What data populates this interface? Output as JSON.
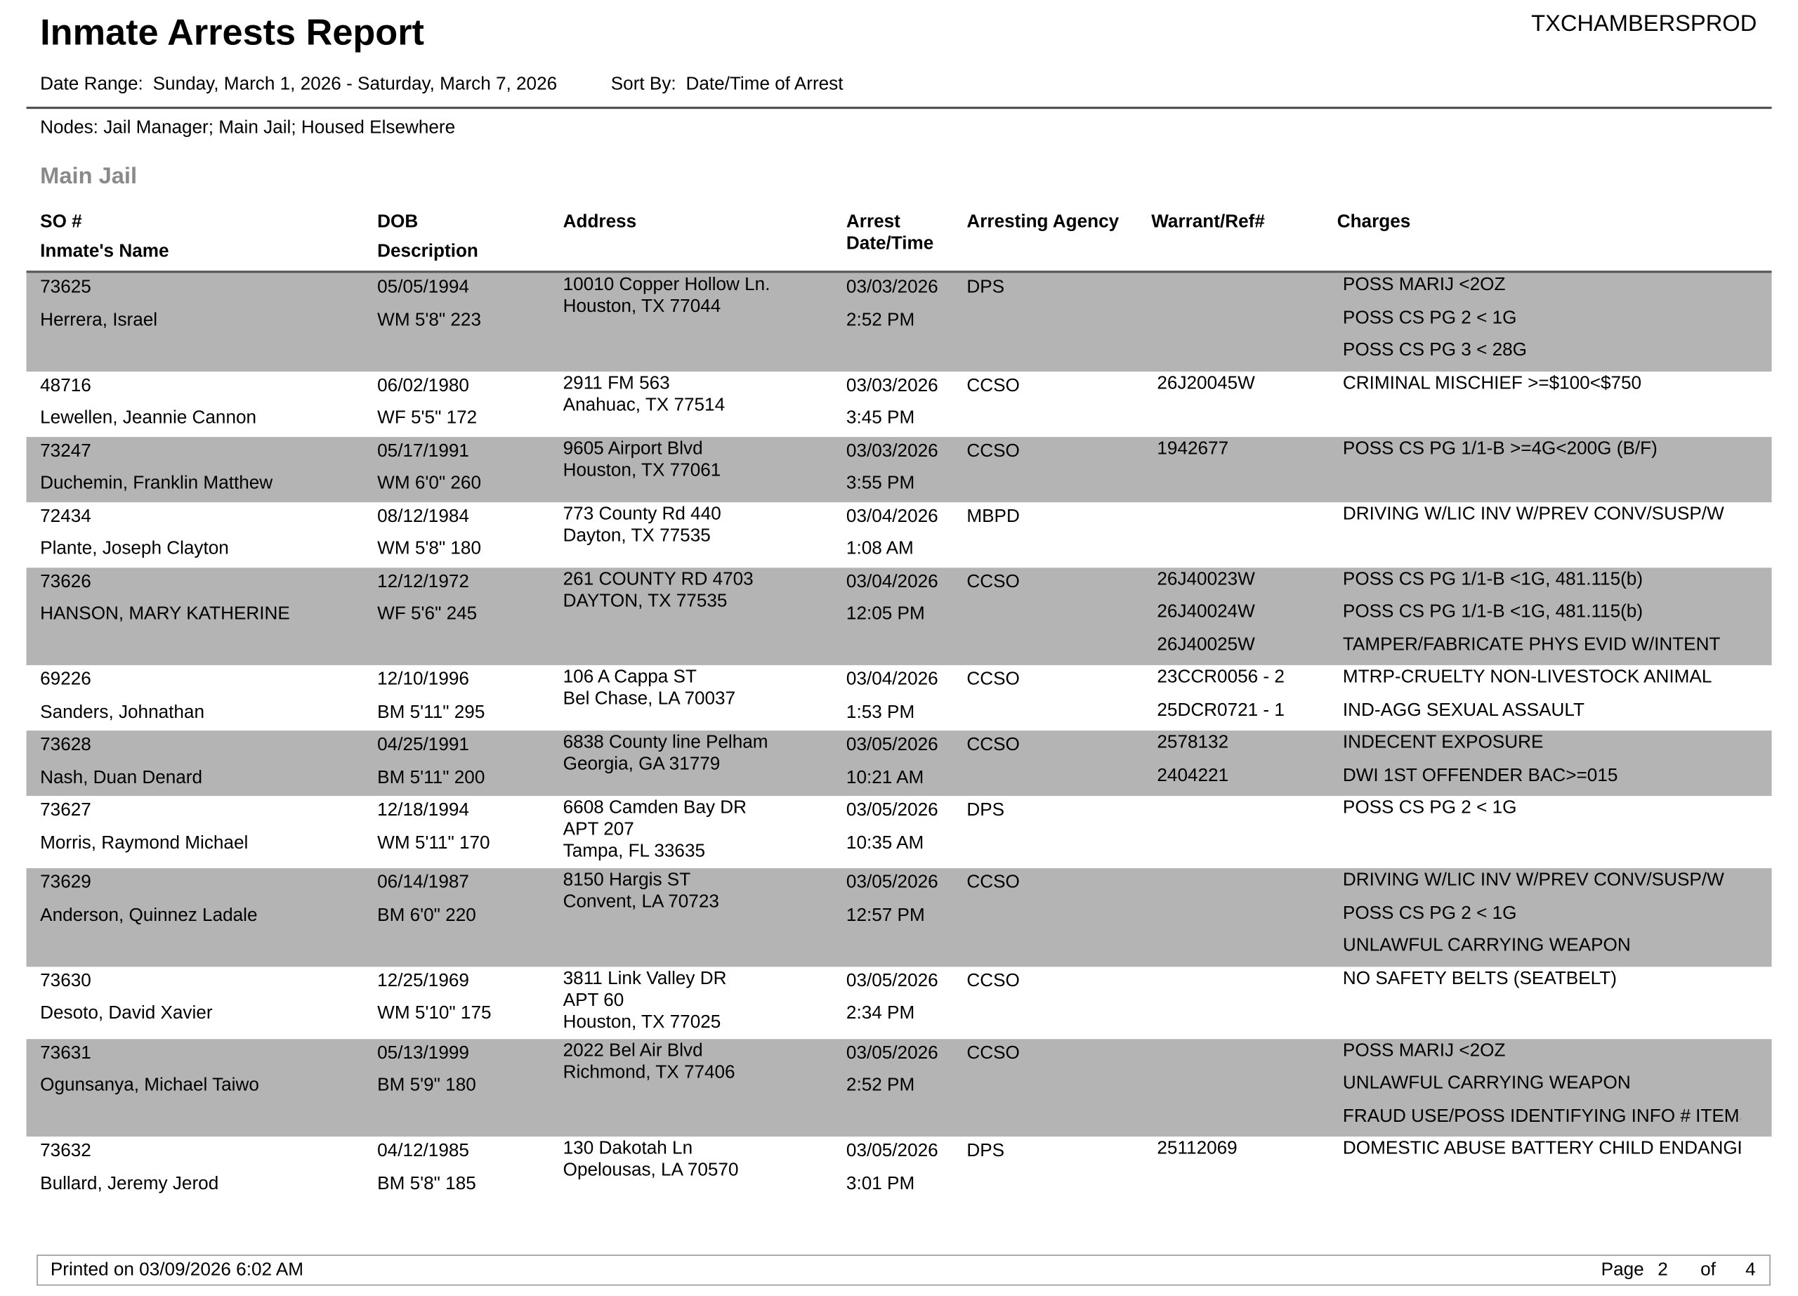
{
  "report": {
    "title": "Inmate Arrests Report",
    "system": "TXCHAMBERSPROD",
    "date_range_label": "Date Range:",
    "date_range": "Sunday, March 1, 2026 - Saturday, March 7, 2026",
    "sort_by_label": "Sort By:",
    "sort_by": "Date/Time of Arrest",
    "nodes_label": "Nodes:",
    "nodes": "Jail Manager; Main Jail; Housed Elsewhere",
    "section": "Main Jail",
    "shade_color": "#b4b4b4"
  },
  "columns": {
    "so": "SO #",
    "name": "Inmate's Name",
    "dob": "DOB",
    "description": "Description",
    "address": "Address",
    "arrest1": "Arrest",
    "arrest2": "Date/Time",
    "agency": "Arresting Agency",
    "warrant": "Warrant/Ref#",
    "charges": "Charges"
  },
  "rows": [
    {
      "so": "73625",
      "name": "Herrera, Israel",
      "dob": "05/05/1994",
      "desc": "WM  5'8\" 223",
      "address": [
        "10010 Copper Hollow Ln.",
        "Houston, TX 77044"
      ],
      "date": "03/03/2026",
      "time": "2:52 PM",
      "agency": "DPS",
      "warrants": [],
      "charges": [
        "POSS MARIJ <2OZ",
        "POSS CS PG 2 < 1G",
        "POSS CS PG 3 < 28G"
      ]
    },
    {
      "so": "48716",
      "name": "Lewellen, Jeannie Cannon",
      "dob": "06/02/1980",
      "desc": "WF  5'5\" 172",
      "address": [
        "2911 FM 563",
        "Anahuac, TX 77514"
      ],
      "date": "03/03/2026",
      "time": "3:45 PM",
      "agency": "CCSO",
      "warrants": [
        "26J20045W"
      ],
      "charges": [
        "CRIMINAL MISCHIEF >=$100<$750"
      ]
    },
    {
      "so": "73247",
      "name": "Duchemin, Franklin Matthew",
      "dob": "05/17/1991",
      "desc": "WM  6'0\" 260",
      "address": [
        "9605 Airport Blvd",
        "Houston, TX 77061"
      ],
      "date": "03/03/2026",
      "time": "3:55 PM",
      "agency": "CCSO",
      "warrants": [
        "1942677"
      ],
      "charges": [
        "POSS CS PG 1/1-B >=4G<200G (B/F)"
      ]
    },
    {
      "so": "72434",
      "name": "Plante, Joseph Clayton",
      "dob": "08/12/1984",
      "desc": "WM  5'8\" 180",
      "address": [
        "773 County Rd 440",
        "Dayton, TX 77535"
      ],
      "date": "03/04/2026",
      "time": "1:08 AM",
      "agency": "MBPD",
      "warrants": [],
      "charges": [
        "DRIVING W/LIC INV W/PREV CONV/SUSP/W"
      ]
    },
    {
      "so": "73626",
      "name": "HANSON, MARY KATHERINE",
      "dob": "12/12/1972",
      "desc": "WF  5'6\" 245",
      "address": [
        "261 COUNTY RD 4703",
        "DAYTON, TX 77535"
      ],
      "date": "03/04/2026",
      "time": "12:05 PM",
      "agency": "CCSO",
      "warrants": [
        "26J40023W",
        "26J40024W",
        "26J40025W"
      ],
      "charges": [
        "POSS CS PG 1/1-B <1G, 481.115(b)",
        "POSS CS PG 1/1-B <1G, 481.115(b)",
        "TAMPER/FABRICATE PHYS EVID W/INTENT"
      ]
    },
    {
      "so": "69226",
      "name": "Sanders, Johnathan",
      "dob": "12/10/1996",
      "desc": "BM  5'11\" 295",
      "address": [
        "106 A Cappa ST",
        "Bel Chase, LA 70037"
      ],
      "date": "03/04/2026",
      "time": "1:53 PM",
      "agency": "CCSO",
      "warrants": [
        "23CCR0056 - 2",
        "25DCR0721 - 1"
      ],
      "charges": [
        "MTRP-CRUELTY NON-LIVESTOCK ANIMAL",
        "IND-AGG SEXUAL ASSAULT"
      ]
    },
    {
      "so": "73628",
      "name": "Nash, Duan Denard",
      "dob": "04/25/1991",
      "desc": "BM  5'11\" 200",
      "address": [
        "6838 County line Pelham",
        "Georgia, GA 31779"
      ],
      "date": "03/05/2026",
      "time": "10:21 AM",
      "agency": "CCSO",
      "warrants": [
        "2578132",
        "2404221"
      ],
      "charges": [
        "INDECENT EXPOSURE",
        "DWI 1ST OFFENDER BAC>=015"
      ]
    },
    {
      "so": "73627",
      "name": "Morris, Raymond Michael",
      "dob": "12/18/1994",
      "desc": "WM  5'11\" 170",
      "address": [
        "6608 Camden Bay DR",
        "APT 207",
        "Tampa, FL 33635"
      ],
      "date": "03/05/2026",
      "time": "10:35 AM",
      "agency": "DPS",
      "warrants": [],
      "charges": [
        "POSS CS PG 2 < 1G"
      ]
    },
    {
      "so": "73629",
      "name": "Anderson, Quinnez Ladale",
      "dob": "06/14/1987",
      "desc": "BM  6'0\" 220",
      "address": [
        "8150 Hargis ST",
        "Convent, LA 70723"
      ],
      "date": "03/05/2026",
      "time": "12:57 PM",
      "agency": "CCSO",
      "warrants": [],
      "charges": [
        "DRIVING W/LIC INV W/PREV CONV/SUSP/W",
        "POSS CS PG 2 < 1G",
        "UNLAWFUL CARRYING WEAPON"
      ]
    },
    {
      "so": "73630",
      "name": "Desoto, David Xavier",
      "dob": "12/25/1969",
      "desc": "WM  5'10\" 175",
      "address": [
        "3811 Link Valley DR",
        "APT 60",
        "Houston, TX 77025"
      ],
      "date": "03/05/2026",
      "time": "2:34 PM",
      "agency": "CCSO",
      "warrants": [],
      "charges": [
        "NO SAFETY BELTS (SEATBELT)"
      ]
    },
    {
      "so": "73631",
      "name": "Ogunsanya, Michael Taiwo",
      "dob": "05/13/1999",
      "desc": "BM  5'9\" 180",
      "address": [
        "2022 Bel Air Blvd",
        "Richmond, TX 77406"
      ],
      "date": "03/05/2026",
      "time": "2:52 PM",
      "agency": "CCSO",
      "warrants": [],
      "charges": [
        "POSS MARIJ <2OZ",
        "UNLAWFUL CARRYING WEAPON",
        "FRAUD USE/POSS IDENTIFYING INFO # ITEMS"
      ]
    },
    {
      "so": "73632",
      "name": "Bullard, Jeremy Jerod",
      "dob": "04/12/1985",
      "desc": "BM  5'8\" 185",
      "address": [
        "130 Dakotah Ln",
        "Opelousas, LA 70570"
      ],
      "date": "03/05/2026",
      "time": "3:01 PM",
      "agency": "DPS",
      "warrants": [
        "25112069"
      ],
      "charges": [
        "DOMESTIC ABUSE BATTERY CHILD ENDANGERMENT"
      ]
    }
  ],
  "footer": {
    "printed": "Printed on 03/09/2026 6:02 AM",
    "page_label": "Page",
    "page": "2",
    "of_label": "of",
    "total": "4"
  }
}
